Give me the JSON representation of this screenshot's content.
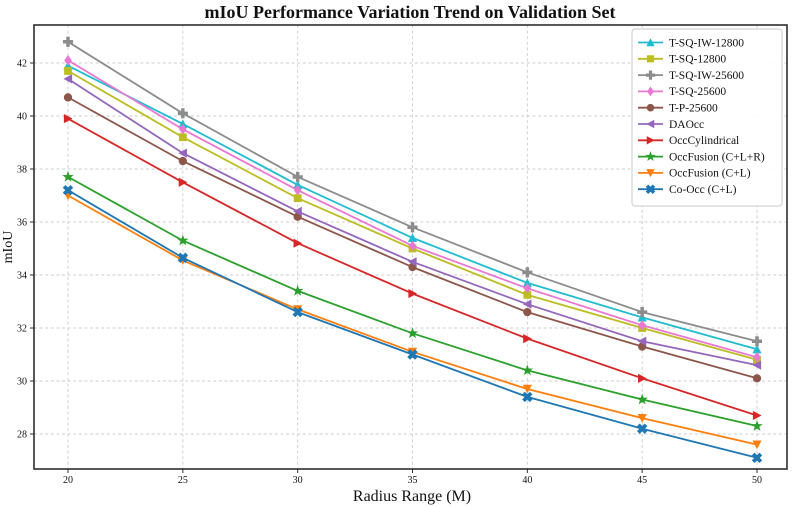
{
  "figure": {
    "title": "mIoU Performance Variation Trend on Validation Set"
  },
  "chart_data": {
    "type": "line",
    "title": "mIoU Performance Variation Trend on Validation Set",
    "xlabel": "Radius Range (M)",
    "ylabel": "mIoU",
    "x": [
      20,
      25,
      30,
      35,
      40,
      45,
      50
    ],
    "xticks": [
      20,
      25,
      30,
      35,
      40,
      45,
      50
    ],
    "yticks": [
      28,
      30,
      32,
      34,
      36,
      38,
      40,
      42
    ],
    "xlim": [
      18.5,
      51.3
    ],
    "ylim": [
      26.7,
      43.4
    ],
    "grid": true,
    "grid_style": "dashed",
    "legend_position": "upper right",
    "series": [
      {
        "name": "T-SQ-IW-12800",
        "color": "#20bcd0",
        "marker": "triangle-up",
        "values": [
          41.9,
          39.7,
          37.4,
          35.4,
          33.7,
          32.4,
          31.2
        ]
      },
      {
        "name": "T-SQ-12800",
        "color": "#bcbd22",
        "marker": "square",
        "values": [
          41.7,
          39.2,
          36.9,
          35.0,
          33.25,
          32.0,
          30.8
        ]
      },
      {
        "name": "T-SQ-IW-25600",
        "color": "#8c8c8c",
        "marker": "plus-filled",
        "values": [
          42.8,
          40.1,
          37.7,
          35.8,
          34.1,
          32.6,
          31.5
        ]
      },
      {
        "name": "T-SQ-25600",
        "color": "#e878d0",
        "marker": "diamond",
        "values": [
          42.1,
          39.5,
          37.2,
          35.1,
          33.5,
          32.1,
          30.9
        ]
      },
      {
        "name": "T-P-25600",
        "color": "#8c564b",
        "marker": "circle",
        "values": [
          40.7,
          38.3,
          36.2,
          34.3,
          32.6,
          31.3,
          30.1
        ]
      },
      {
        "name": "DAOcc",
        "color": "#9467bd",
        "marker": "triangle-left",
        "values": [
          41.4,
          38.6,
          36.4,
          34.5,
          32.9,
          31.5,
          30.6
        ]
      },
      {
        "name": "OccCylindrical",
        "color": "#d62728",
        "marker": "triangle-right",
        "values": [
          39.9,
          37.5,
          35.2,
          33.3,
          31.6,
          30.1,
          28.7
        ]
      },
      {
        "name": "OccFusion (C+L+R)",
        "color": "#2ca02c",
        "marker": "star",
        "values": [
          37.7,
          35.3,
          33.4,
          31.8,
          30.4,
          29.3,
          28.3
        ]
      },
      {
        "name": "OccFusion (C+L)",
        "color": "#ff7f0e",
        "marker": "triangle-down",
        "values": [
          37.0,
          34.55,
          32.7,
          31.1,
          29.7,
          28.6,
          27.6
        ]
      },
      {
        "name": "Co-Occ (C+L)",
        "color": "#1f77b4",
        "marker": "x-filled",
        "values": [
          37.2,
          34.65,
          32.6,
          31.0,
          29.4,
          28.2,
          27.1
        ]
      }
    ]
  }
}
